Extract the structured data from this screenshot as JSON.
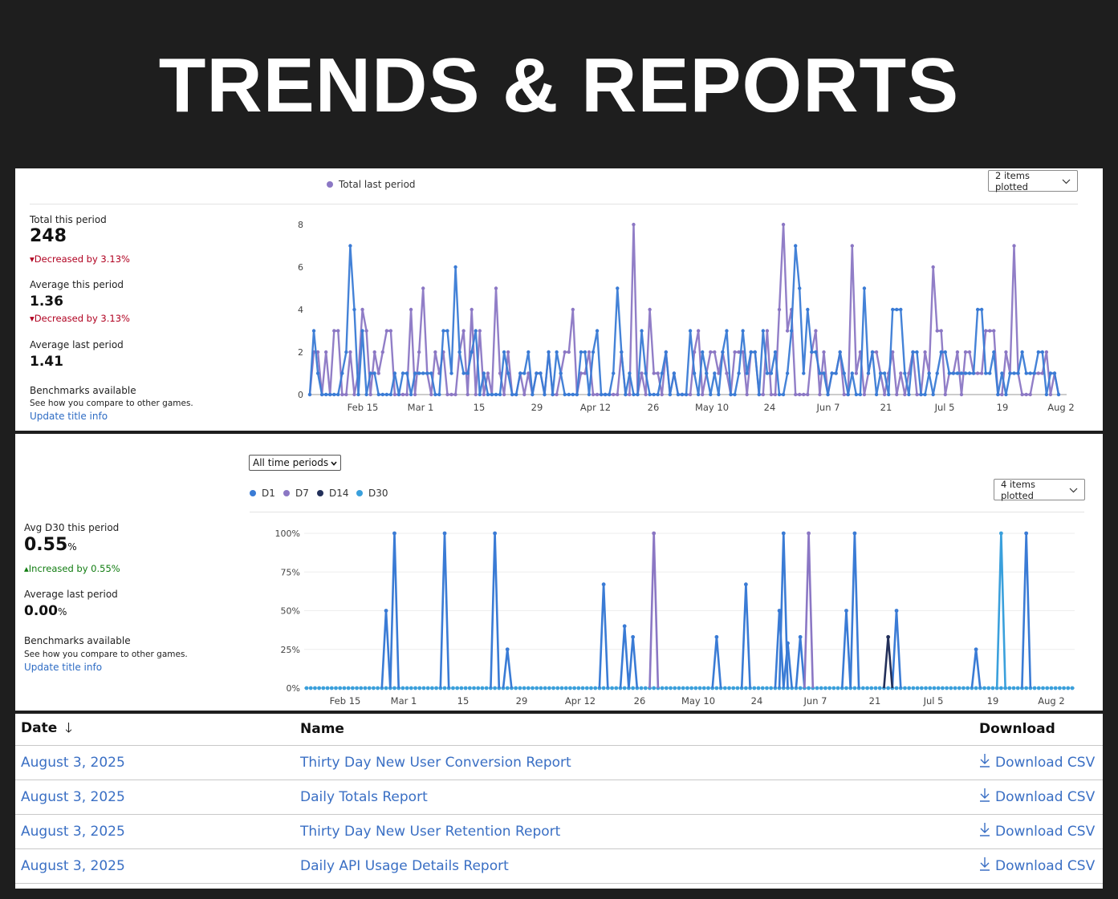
{
  "page": {
    "title": "TRENDS & REPORTS"
  },
  "chart1": {
    "plot_button": "2 items plotted",
    "legend": [
      {
        "label": "Total last period",
        "color": "#8b77c4"
      }
    ],
    "stats": {
      "total_label": "Total this period",
      "total_value": "248",
      "total_change": "Decreased by 3.13%",
      "avg_label": "Average this period",
      "avg_value": "1.36",
      "avg_change": "Decreased by 3.13%",
      "avg_last_label": "Average last period",
      "avg_last_value": "1.41",
      "bench_title": "Benchmarks available",
      "bench_desc": "See how you compare to other games.",
      "bench_link": "Update title info"
    }
  },
  "chart2": {
    "period_select": "All time periods",
    "plot_button": "4 items plotted",
    "legend": [
      {
        "label": "D1",
        "color": "#3a7bd5"
      },
      {
        "label": "D7",
        "color": "#8b77c4"
      },
      {
        "label": "D14",
        "color": "#23305a"
      },
      {
        "label": "D30",
        "color": "#3aa0dc"
      }
    ],
    "stats": {
      "avg_label": "Avg D30 this period",
      "avg_value": "0.55",
      "avg_unit": "%",
      "avg_change": "Increased by 0.55%",
      "avg_last_label": "Average last period",
      "avg_last_value": "0.00",
      "avg_last_unit": "%",
      "bench_title": "Benchmarks available",
      "bench_desc": "See how you compare to other games.",
      "bench_link": "Update title info"
    }
  },
  "chart_data": [
    {
      "type": "line",
      "title": "",
      "x_tick_labels": [
        "Feb 15",
        "Mar 1",
        "15",
        "29",
        "Apr 12",
        "26",
        "May 10",
        "24",
        "Jun 7",
        "21",
        "Jul 5",
        "19",
        "Aug 2"
      ],
      "y_ticks": [
        "0",
        "2",
        "4",
        "6",
        "8"
      ],
      "ylim": [
        0,
        8
      ],
      "series": [
        {
          "name": "Total this period",
          "color": "#3a7bd5",
          "values": [
            0,
            3,
            1,
            0,
            0,
            0,
            0,
            0,
            1,
            2,
            7,
            4,
            0,
            3,
            0,
            1,
            1,
            0,
            0,
            0,
            0,
            1,
            0,
            1,
            1,
            0,
            1,
            1,
            1,
            1,
            1,
            0,
            0,
            3,
            3,
            1,
            6,
            2,
            1,
            1,
            2,
            3,
            0,
            1,
            0,
            0,
            0,
            0,
            2,
            1,
            0,
            0,
            1,
            1,
            2,
            0,
            1,
            1,
            0,
            2,
            0,
            2,
            1,
            0,
            0,
            0,
            0,
            2,
            2,
            0,
            2,
            3,
            0,
            0,
            0,
            1,
            5,
            2,
            0,
            1,
            0,
            0,
            3,
            1,
            0,
            0,
            0,
            1,
            2,
            0,
            1,
            0,
            0,
            0,
            3,
            1,
            0,
            2,
            1,
            0,
            1,
            0,
            2,
            3,
            0,
            0,
            1,
            3,
            1,
            2,
            2,
            0,
            3,
            1,
            1,
            2,
            0,
            0,
            1,
            3,
            7,
            5,
            1,
            4,
            2,
            2,
            1,
            1,
            0,
            1,
            1,
            2,
            1,
            0,
            1,
            0,
            0,
            5,
            1,
            2,
            0,
            1,
            1,
            0,
            4,
            4,
            4,
            1,
            0,
            2,
            2,
            0,
            0,
            1,
            0,
            1,
            2,
            2,
            1,
            1,
            1,
            1,
            1,
            1,
            1,
            4,
            4,
            1,
            1,
            2,
            0,
            1,
            0,
            1,
            1,
            1,
            2,
            1,
            1,
            1,
            2,
            2,
            0,
            1,
            1,
            0
          ],
          "note": "values approximated from chart"
        },
        {
          "name": "Total last period",
          "color": "#8b77c4",
          "values": [
            0,
            2,
            2,
            0,
            2,
            0,
            3,
            3,
            0,
            0,
            2,
            0,
            1,
            4,
            3,
            0,
            2,
            1,
            2,
            3,
            3,
            0,
            0,
            0,
            0,
            4,
            0,
            2,
            5,
            1,
            0,
            2,
            1,
            2,
            0,
            0,
            0,
            2,
            3,
            0,
            4,
            0,
            3,
            0,
            1,
            0,
            5,
            1,
            0,
            2,
            0,
            0,
            1,
            0,
            1,
            0,
            1,
            1,
            0,
            2,
            0,
            0,
            1,
            2,
            2,
            4,
            0,
            1,
            1,
            2,
            0,
            0,
            0,
            0,
            0,
            0,
            0,
            2,
            0,
            0,
            8,
            0,
            1,
            0,
            4,
            1,
            1,
            0,
            2,
            0,
            1,
            0,
            0,
            0,
            0,
            2,
            3,
            0,
            1,
            2,
            2,
            1,
            2,
            1,
            0,
            2,
            2,
            2,
            0,
            2,
            2,
            0,
            0,
            3,
            0,
            0,
            4,
            8,
            3,
            4,
            0,
            0,
            0,
            0,
            2,
            3,
            0,
            2,
            0,
            1,
            1,
            2,
            0,
            0,
            7,
            1,
            2,
            0,
            1,
            2,
            2,
            1,
            0,
            1,
            2,
            0,
            1,
            0,
            1,
            2,
            0,
            0,
            2,
            1,
            6,
            3,
            3,
            0,
            1,
            1,
            2,
            0,
            2,
            2,
            1,
            1,
            1,
            3,
            3,
            3,
            0,
            0,
            2,
            1,
            7,
            1,
            0,
            0,
            0,
            1,
            1,
            1,
            2,
            0,
            1,
            0
          ],
          "note": "values approximated from chart"
        }
      ]
    },
    {
      "type": "line",
      "title": "",
      "x_tick_labels": [
        "Feb 15",
        "Mar 1",
        "15",
        "29",
        "Apr 12",
        "26",
        "May 10",
        "24",
        "Jun 7",
        "21",
        "Jul 5",
        "19",
        "Aug 2"
      ],
      "y_ticks": [
        "0%",
        "25%",
        "50%",
        "75%",
        "100%"
      ],
      "ylim": [
        0,
        100
      ],
      "series": [
        {
          "name": "D1",
          "color": "#3a7bd5",
          "points": [
            [
              19,
              50
            ],
            [
              21,
              100
            ],
            [
              33,
              100
            ],
            [
              45,
              100
            ],
            [
              48,
              25
            ],
            [
              71,
              67
            ],
            [
              76,
              40
            ],
            [
              78,
              33
            ],
            [
              98,
              33
            ],
            [
              105,
              67
            ],
            [
              113,
              50
            ],
            [
              114,
              100
            ],
            [
              115,
              29
            ],
            [
              118,
              33
            ],
            [
              129,
              50
            ],
            [
              131,
              100
            ],
            [
              141,
              50
            ],
            [
              160,
              25
            ],
            [
              172,
              100
            ]
          ]
        },
        {
          "name": "D7",
          "color": "#8b77c4",
          "points": [
            [
              83,
              100
            ],
            [
              120,
              100
            ]
          ]
        },
        {
          "name": "D14",
          "color": "#23305a",
          "points": [
            [
              139,
              33
            ]
          ]
        },
        {
          "name": "D30",
          "color": "#3aa0dc",
          "points": [
            [
              166,
              100
            ]
          ]
        }
      ],
      "n_days": 184,
      "note": "sparse spikes; all other days are 0%"
    }
  ],
  "reports": {
    "headers": {
      "date": "Date",
      "name": "Name",
      "download": "Download"
    },
    "sort_icon": "arrow-down-icon",
    "rows": [
      {
        "date": "August 3, 2025",
        "name": "Thirty Day New User Conversion Report",
        "download": "Download CSV"
      },
      {
        "date": "August 3, 2025",
        "name": "Daily Totals Report",
        "download": "Download CSV"
      },
      {
        "date": "August 3, 2025",
        "name": "Thirty Day New User Retention Report",
        "download": "Download CSV"
      },
      {
        "date": "August 3, 2025",
        "name": "Daily API Usage Details Report",
        "download": "Download CSV"
      }
    ]
  }
}
